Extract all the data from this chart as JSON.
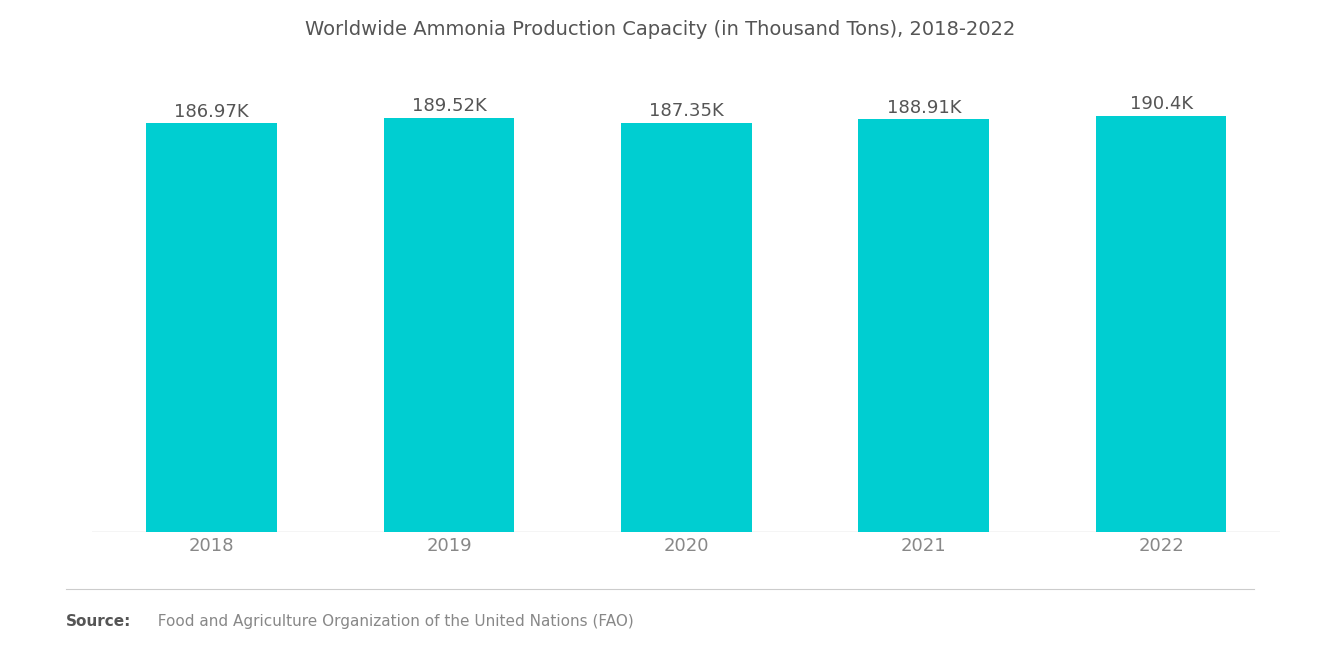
{
  "title": "Worldwide Ammonia Production Capacity (in Thousand Tons), 2018-2022",
  "categories": [
    "2018",
    "2019",
    "2020",
    "2021",
    "2022"
  ],
  "values": [
    186.97,
    189.52,
    187.35,
    188.91,
    190.4
  ],
  "labels": [
    "186.97K",
    "189.52K",
    "187.35K",
    "188.91K",
    "190.4K"
  ],
  "bar_color": "#00CED1",
  "background_color": "#ffffff",
  "title_color": "#555555",
  "label_color": "#555555",
  "xtick_color": "#888888",
  "source_bold": "Source:",
  "source_text": "  Food and Agriculture Organization of the United Nations (FAO)",
  "ylim_min": 0,
  "ylim_max": 210,
  "title_fontsize": 14,
  "label_fontsize": 13,
  "xtick_fontsize": 13,
  "source_fontsize": 11,
  "bar_width": 0.55
}
